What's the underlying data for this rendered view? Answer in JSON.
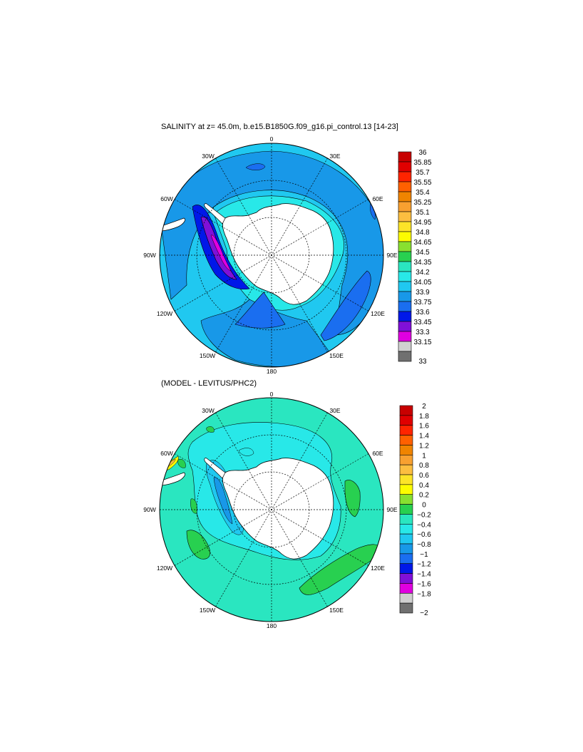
{
  "panels": [
    {
      "title": "SALINITY at z=  45.0m, b.e15.B1850G.f09_g16.pi_control.13 [14-23]",
      "lon_labels": {
        "n": "0",
        "nne": "30E",
        "ene": "60E",
        "e": "90E",
        "ese": "120E",
        "sse": "150E",
        "s": "180",
        "ssw": "150W",
        "wsw": "120W",
        "w": "90W",
        "wnw": "60W",
        "nnw": "30W"
      },
      "colorbar": {
        "labels": [
          "36",
          "35.85",
          "35.7",
          "35.55",
          "35.4",
          "35.25",
          "35.1",
          "34.95",
          "34.8",
          "34.65",
          "34.5",
          "34.35",
          "34.2",
          "34.05",
          "33.9",
          "33.75",
          "33.6",
          "33.45",
          "33.3",
          "33.15",
          "33"
        ],
        "colors": [
          "#c80000",
          "#e00000",
          "#ff2400",
          "#ff6000",
          "#f08400",
          "#f8a030",
          "#fcbe40",
          "#fce428",
          "#fcfc00",
          "#88e030",
          "#28d050",
          "#2ae6c0",
          "#28e8e8",
          "#20c8f0",
          "#1898e8",
          "#1a6ef0",
          "#0018e8",
          "#8010d8",
          "#e000e0",
          "#d0d0d0",
          "#707070"
        ]
      }
    },
    {
      "title": "(MODEL - LEVITUS/PHC2)",
      "lon_labels": {
        "n": "0",
        "nne": "30E",
        "ene": "60E",
        "e": "90E",
        "ese": "120E",
        "sse": "150E",
        "s": "180",
        "ssw": "150W",
        "wsw": "120W",
        "w": "90W",
        "wnw": "60W",
        "nnw": "30W"
      },
      "colorbar": {
        "labels": [
          "2",
          "1.8",
          "1.6",
          "1.4",
          "1.2",
          "1",
          "0.8",
          "0.6",
          "0.4",
          "0.2",
          "0",
          "−0.2",
          "−0.4",
          "−0.6",
          "−0.8",
          "−1",
          "−1.2",
          "−1.4",
          "−1.6",
          "−1.8",
          "−2"
        ],
        "colors": [
          "#c80000",
          "#e00000",
          "#ff2400",
          "#ff6000",
          "#f08400",
          "#f8a030",
          "#fcbe40",
          "#fce428",
          "#fcfc00",
          "#88e030",
          "#28d050",
          "#2ae6c0",
          "#28e8e8",
          "#20c8f0",
          "#1898e8",
          "#1a6ef0",
          "#0018e8",
          "#8010d8",
          "#e000e0",
          "#d0d0d0",
          "#707070"
        ]
      }
    }
  ]
}
